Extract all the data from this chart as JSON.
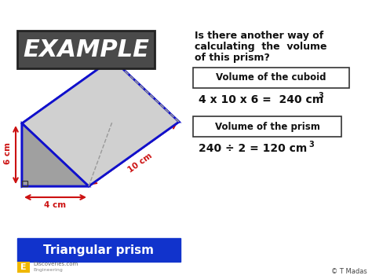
{
  "bg_color": "#ffffff",
  "title_box_color": "#555555",
  "title_box_color2": "#333333",
  "title_text": "EXAMPLE",
  "title_text_color": "#ffffff",
  "question_text_line1": "Is there another way of",
  "question_text_line2": "calculating  the  volume",
  "question_text_line3": "of this prism?",
  "cuboid_box_label": "Volume of the cuboid",
  "cuboid_formula": "4 x 10 x 6 =  240 cm",
  "cuboid_exp": "3",
  "prism_box_label": "Volume of the prism",
  "prism_formula": "240 ÷ 2 = 120 cm",
  "prism_exp": "3",
  "bottom_box_color": "#1133cc",
  "bottom_box_text": "Triangular prism",
  "bottom_box_text_color": "#ffffff",
  "dim_6cm": "6 cm",
  "dim_10cm": "10 cm",
  "dim_4cm": "4 cm",
  "edge_color_blue": "#1010cc",
  "edge_color_red": "#cc1111",
  "face_bottom": "#b8b8b8",
  "face_right_rect": "#d0d0d0",
  "face_top_slant": "#e0e0e0",
  "face_front_tri": "#a0a0a0",
  "face_back_tri": "#909090",
  "face_left_rect": "#c0c0c0",
  "watermark": "© T Madas",
  "logo_color": "#f0b800"
}
